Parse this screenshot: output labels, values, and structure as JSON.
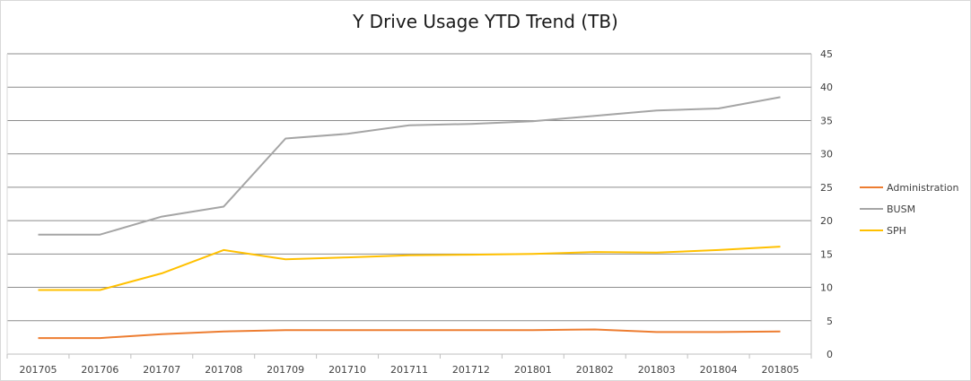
{
  "chart_data": {
    "type": "line",
    "title": "Y Drive Usage YTD Trend (TB)",
    "xlabel": "",
    "ylabel": "",
    "categories": [
      "201705",
      "201706",
      "201707",
      "201708",
      "201709",
      "201710",
      "201711",
      "201712",
      "201801",
      "201802",
      "201803",
      "201804",
      "201805"
    ],
    "ylim": [
      0,
      45
    ],
    "yticks": [
      0,
      5,
      10,
      15,
      20,
      25,
      30,
      35,
      40,
      45
    ],
    "y_axis_side": "right",
    "grid": true,
    "legend_position": "right",
    "series": [
      {
        "name": "Administration",
        "color": "#ed7d31",
        "values": [
          2.4,
          2.4,
          3.0,
          3.4,
          3.6,
          3.6,
          3.6,
          3.6,
          3.6,
          3.7,
          3.3,
          3.3,
          3.4
        ]
      },
      {
        "name": "BUSM",
        "color": "#a5a5a5",
        "values": [
          17.9,
          17.9,
          20.6,
          22.1,
          32.3,
          33.0,
          34.3,
          34.5,
          34.9,
          35.7,
          36.5,
          36.8,
          38.5
        ]
      },
      {
        "name": "SPH",
        "color": "#ffc000",
        "values": [
          9.6,
          9.6,
          12.1,
          15.6,
          14.2,
          14.5,
          14.8,
          14.9,
          15.0,
          15.3,
          15.2,
          15.6,
          16.1
        ]
      }
    ]
  }
}
